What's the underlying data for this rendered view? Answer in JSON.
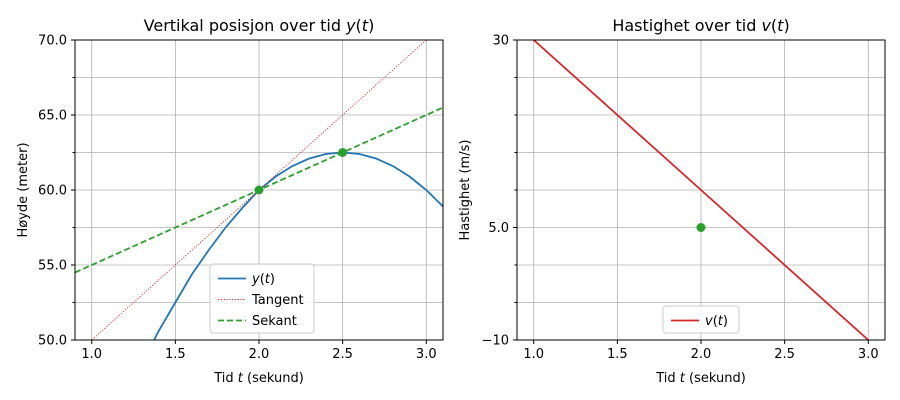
{
  "chart_data": [
    {
      "type": "line",
      "title": "Vertikal posisjon over tid y(t)",
      "xlabel": "Tid t (sekund)",
      "ylabel": "Høyde (meter)",
      "xlim": [
        0.9,
        3.1
      ],
      "ylim": [
        50.0,
        70.0
      ],
      "xticks": [
        1.0,
        1.5,
        2.0,
        2.5,
        3.0
      ],
      "xtick_labels": [
        "1.0",
        "1.5",
        "2.0",
        "2.5",
        "3.0"
      ],
      "yticks": [
        50.0,
        55.0,
        60.0,
        65.0,
        70.0
      ],
      "ytick_labels": [
        "50.0",
        "55.0",
        "60.0",
        "65.0",
        "70.0"
      ],
      "yminor": [
        52.5,
        57.5,
        62.5,
        67.5
      ],
      "grid": true,
      "legend": "lower center",
      "series": [
        {
          "name": "y(t)",
          "style": "solid",
          "color": "#1f77b4",
          "x": [
            1.3,
            1.4,
            1.5,
            1.6,
            1.7,
            1.8,
            1.9,
            2.0,
            2.1,
            2.2,
            2.3,
            2.4,
            2.5,
            2.6,
            2.7,
            2.8,
            2.9,
            3.0,
            3.1
          ],
          "y": [
            48.4,
            50.6,
            52.5,
            54.4,
            56.0,
            57.5,
            58.8,
            60.0,
            60.9,
            61.6,
            62.1,
            62.4,
            62.5,
            62.4,
            62.1,
            61.6,
            60.9,
            60.0,
            58.9
          ]
        },
        {
          "name": "Tangent",
          "style": "dotted",
          "color": "#d62728",
          "x": [
            1.0,
            3.0
          ],
          "y": [
            50.0,
            70.0
          ]
        },
        {
          "name": "Sekant",
          "style": "dashed",
          "color": "#2ca02c",
          "x": [
            0.9,
            3.1
          ],
          "y": [
            54.5,
            65.5
          ]
        }
      ],
      "points": [
        {
          "x": 2.0,
          "y": 60.0,
          "color": "#2ca02c"
        },
        {
          "x": 2.5,
          "y": 62.5,
          "color": "#2ca02c"
        }
      ]
    },
    {
      "type": "line",
      "title": "Hastighet over tid v(t)",
      "xlabel": "Tid t (sekund)",
      "ylabel": "Hastighet (m/s)",
      "xlim": [
        0.9,
        3.1
      ],
      "ylim": [
        -10,
        30
      ],
      "xticks": [
        1.0,
        1.5,
        2.0,
        2.5,
        3.0
      ],
      "xtick_labels": [
        "1.0",
        "1.5",
        "2.0",
        "2.5",
        "3.0"
      ],
      "yticks": [
        -10,
        5,
        30
      ],
      "ytick_labels": [
        "−10",
        "5.0",
        "30"
      ],
      "ygrid": [
        -10,
        -5,
        0,
        5,
        10,
        15,
        20,
        25,
        30
      ],
      "grid": true,
      "legend": "lower center",
      "series": [
        {
          "name": "v(t)",
          "style": "solid",
          "color": "#d62728",
          "x": [
            1.0,
            3.0
          ],
          "y": [
            30,
            -10
          ]
        }
      ],
      "points": [
        {
          "x": 2.0,
          "y": 5.0,
          "color": "#2ca02c"
        }
      ]
    }
  ]
}
